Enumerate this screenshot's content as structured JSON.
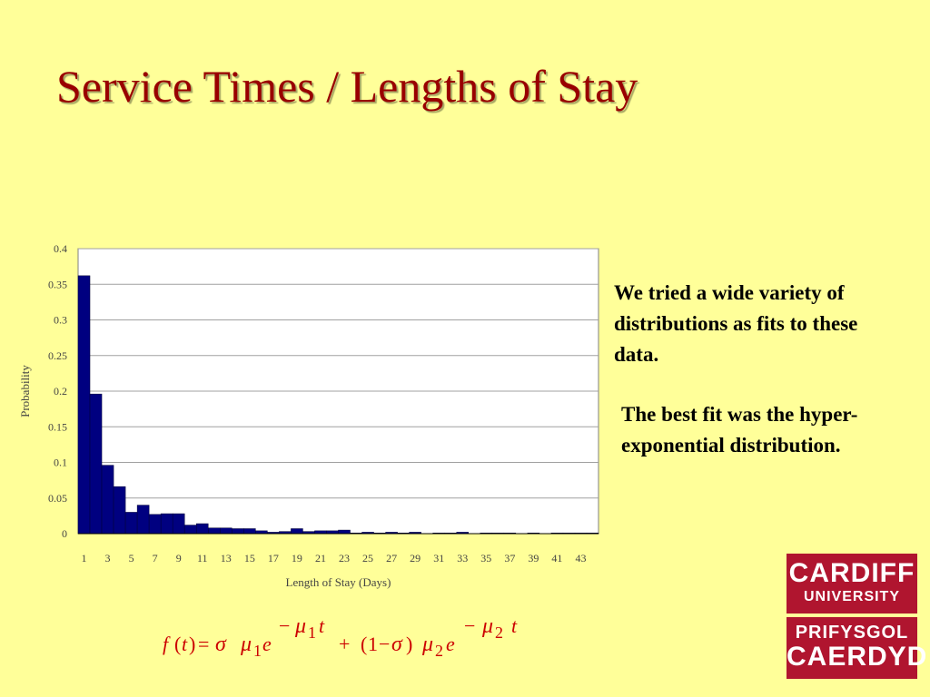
{
  "slide": {
    "title": "Service Times / Lengths of Stay",
    "paragraph1": "We tried a wide variety of distributions as fits to these data.",
    "paragraph2": "The best fit was the hyper-exponential distribution."
  },
  "logo": {
    "line1": "CARDIFF",
    "line2": "UNIVERSITY",
    "line3": "PRIFYSGOL",
    "line4": "CAERDYD"
  },
  "formula": {
    "f": "f",
    "t": "t",
    "eq": "=",
    "sigma": "σ",
    "mu": "μ",
    "e": "e",
    "one": "1",
    "two": "2",
    "minus": "−",
    "plus": "+",
    "open": "(",
    "close": ")"
  },
  "colors": {
    "background": "#ffff99",
    "title": "#990000",
    "bar": "#000080",
    "formula": "#cc0000",
    "logo": "#b0152f"
  },
  "chart_data": {
    "type": "bar",
    "xlabel": "Length of Stay (Days)",
    "ylabel": "Probability",
    "ylim": [
      0,
      0.4
    ],
    "yticks": [
      "0",
      "0.05",
      "0.1",
      "0.15",
      "0.2",
      "0.25",
      "0.3",
      "0.35",
      "0.4"
    ],
    "xtick_labels": [
      "1",
      "3",
      "5",
      "7",
      "9",
      "11",
      "13",
      "15",
      "17",
      "19",
      "21",
      "23",
      "25",
      "27",
      "29",
      "31",
      "33",
      "35",
      "37",
      "39",
      "41",
      "43"
    ],
    "grid": true,
    "categories": [
      1,
      2,
      3,
      4,
      5,
      6,
      7,
      8,
      9,
      10,
      11,
      12,
      13,
      14,
      15,
      16,
      17,
      18,
      19,
      20,
      21,
      22,
      23,
      24,
      25,
      26,
      27,
      28,
      29,
      30,
      31,
      32,
      33,
      34,
      35,
      36,
      37,
      38,
      39,
      40,
      41,
      42,
      43,
      44
    ],
    "values": [
      0.362,
      0.196,
      0.096,
      0.066,
      0.03,
      0.04,
      0.027,
      0.028,
      0.028,
      0.012,
      0.014,
      0.008,
      0.008,
      0.007,
      0.007,
      0.004,
      0.002,
      0.003,
      0.007,
      0.003,
      0.004,
      0.004,
      0.005,
      0.001,
      0.002,
      0.001,
      0.002,
      0.001,
      0.002,
      0.0,
      0.001,
      0.001,
      0.002,
      0.0,
      0.001,
      0.001,
      0.001,
      0.0,
      0.001,
      0.0,
      0.001,
      0.001,
      0.001,
      0.001
    ]
  }
}
